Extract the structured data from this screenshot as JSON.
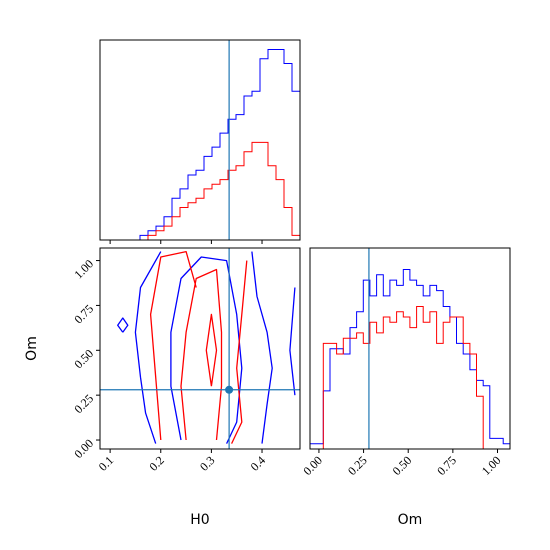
{
  "chart_data": {
    "type": "corner",
    "parameters": [
      "H0",
      "Om"
    ],
    "truth": {
      "H0": 0.335,
      "Om": 0.28
    },
    "truth_color": "#1f77b4",
    "series_colors": [
      "#0000ff",
      "#ff0000"
    ],
    "panels": {
      "h0_hist": {
        "type": "histogram",
        "xlim": [
          0.08,
          0.475
        ],
        "bins": {
          "start": 0.08,
          "width": 0.0158
        },
        "series": [
          {
            "color": "#0000ff",
            "counts": [
              0,
              0,
              0,
              0,
              0,
              1,
              2,
              3,
              5,
              9,
              11,
              14,
              15,
              18,
              20,
              23,
              26,
              27,
              31,
              32,
              39,
              41,
              41,
              38,
              32,
              25,
              15,
              5,
              1,
              0
            ]
          },
          {
            "color": "#ff0000",
            "counts": [
              0,
              0,
              0,
              0,
              0,
              0,
              1,
              2,
              3,
              5,
              7,
              8,
              9,
              11,
              12,
              13,
              15,
              16,
              19,
              21,
              21,
              16,
              13,
              7,
              1,
              0,
              0,
              0,
              0,
              0
            ]
          }
        ]
      },
      "h0_om_contour": {
        "type": "contour",
        "x_param": "H0",
        "y_param": "Om",
        "xlim": [
          0.08,
          0.475
        ],
        "ylim": [
          -0.05,
          1.07
        ],
        "xticks": [
          "0.1",
          "0.2",
          "0.3",
          "0.4"
        ],
        "yticks": [
          "0.00",
          "0.25",
          "0.50",
          "0.75",
          "1.00"
        ],
        "xlabel": "H0",
        "ylabel": "Om",
        "series": [
          {
            "color": "#0000ff",
            "contours": [
              [
                [
                  0.19,
                  -0.02
                ],
                [
                  0.17,
                  0.15
                ],
                [
                  0.16,
                  0.35
                ],
                [
                  0.15,
                  0.6
                ],
                [
                  0.16,
                  0.85
                ],
                [
                  0.2,
                  1.05
                ]
              ],
              [
                [
                  0.38,
                  1.05
                ],
                [
                  0.39,
                  0.8
                ],
                [
                  0.41,
                  0.6
                ],
                [
                  0.42,
                  0.4
                ],
                [
                  0.41,
                  0.2
                ],
                [
                  0.4,
                  -0.02
                ]
              ],
              [
                [
                  0.24,
                  0.0
                ],
                [
                  0.22,
                  0.3
                ],
                [
                  0.22,
                  0.6
                ],
                [
                  0.24,
                  0.9
                ],
                [
                  0.28,
                  1.02
                ],
                [
                  0.33,
                  1.0
                ],
                [
                  0.35,
                  0.7
                ],
                [
                  0.36,
                  0.4
                ],
                [
                  0.35,
                  0.1
                ],
                [
                  0.33,
                  -0.02
                ]
              ],
              [
                [
                  0.465,
                  0.25
                ],
                [
                  0.455,
                  0.5
                ],
                [
                  0.465,
                  0.85
                ]
              ],
              [
                [
                  0.125,
                  0.6
                ],
                [
                  0.135,
                  0.64
                ],
                [
                  0.125,
                  0.68
                ],
                [
                  0.115,
                  0.64
                ],
                [
                  0.125,
                  0.6
                ]
              ]
            ]
          },
          {
            "color": "#ff0000",
            "contours": [
              [
                [
                  0.2,
                  0.0
                ],
                [
                  0.19,
                  0.35
                ],
                [
                  0.18,
                  0.7
                ],
                [
                  0.2,
                  1.02
                ],
                [
                  0.25,
                  1.05
                ],
                [
                  0.27,
                  0.85
                ]
              ],
              [
                [
                  0.37,
                  1.0
                ],
                [
                  0.36,
                  0.7
                ],
                [
                  0.35,
                  0.4
                ],
                [
                  0.36,
                  0.1
                ],
                [
                  0.34,
                  -0.02
                ]
              ],
              [
                [
                  0.25,
                  0.0
                ],
                [
                  0.24,
                  0.3
                ],
                [
                  0.25,
                  0.6
                ],
                [
                  0.27,
                  0.9
                ],
                [
                  0.31,
                  0.95
                ],
                [
                  0.32,
                  0.6
                ],
                [
                  0.32,
                  0.3
                ],
                [
                  0.31,
                  0.0
                ]
              ],
              [
                [
                  0.3,
                  0.3
                ],
                [
                  0.29,
                  0.5
                ],
                [
                  0.3,
                  0.7
                ],
                [
                  0.31,
                  0.5
                ],
                [
                  0.3,
                  0.3
                ]
              ]
            ]
          }
        ]
      },
      "om_hist": {
        "type": "histogram",
        "xlim": [
          -0.05,
          1.07
        ],
        "xticks": [
          "0.00",
          "0.25",
          "0.50",
          "0.75",
          "1.00"
        ],
        "xlabel": "Om",
        "bins": {
          "start": -0.05,
          "width": 0.0373
        },
        "series": [
          {
            "color": "#0000ff",
            "counts": [
              1,
              1,
              11,
              19,
              19,
              18,
              23,
              26,
              32,
              29,
              33,
              29,
              32,
              31,
              34,
              32,
              31,
              29,
              31,
              30,
              27,
              25,
              20,
              18,
              15,
              13,
              12,
              2,
              2,
              1
            ]
          },
          {
            "color": "#ff0000",
            "counts": [
              0,
              0,
              20,
              20,
              18,
              21,
              21,
              22,
              20,
              24,
              22,
              25,
              24,
              26,
              25,
              23,
              27,
              24,
              26,
              20,
              24,
              25,
              25,
              20,
              18,
              10,
              0,
              0,
              0,
              0
            ]
          }
        ]
      }
    }
  }
}
